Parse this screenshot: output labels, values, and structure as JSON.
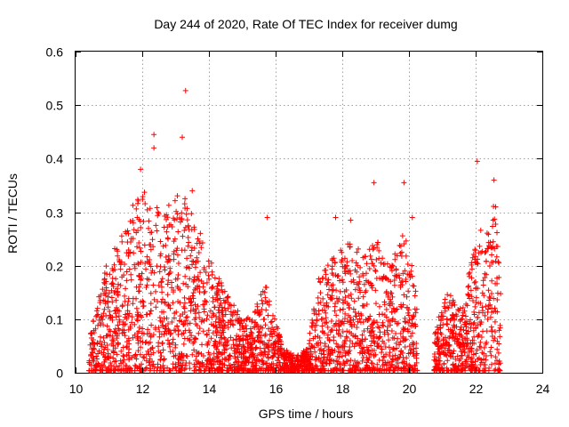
{
  "chart_data": {
    "type": "scatter",
    "title": "Day 244 of 2020, Rate Of TEC Index for receiver dumg",
    "xlabel": "GPS time / hours",
    "ylabel": "ROTI / TECUs",
    "xlim": [
      10,
      24
    ],
    "ylim": [
      0,
      0.6
    ],
    "xticks": [
      "10",
      "12",
      "14",
      "16",
      "18",
      "20",
      "22",
      "24"
    ],
    "yticks": [
      "0",
      "0.1",
      "0.2",
      "0.3",
      "0.4",
      "0.5",
      "0.6"
    ],
    "grid": true,
    "marker": "+",
    "color": "#ff0000",
    "series": [
      {
        "name": "ROTI",
        "approx_peak_points": [
          [
            13.3,
            0.527
          ],
          [
            12.35,
            0.445
          ],
          [
            13.2,
            0.44
          ],
          [
            12.35,
            0.42
          ],
          [
            11.95,
            0.38
          ],
          [
            13.5,
            0.34
          ],
          [
            15.75,
            0.29
          ],
          [
            17.8,
            0.29
          ],
          [
            18.25,
            0.285
          ],
          [
            18.95,
            0.355
          ],
          [
            19.85,
            0.355
          ],
          [
            20.1,
            0.29
          ],
          [
            22.05,
            0.395
          ],
          [
            22.55,
            0.36
          ],
          [
            22.6,
            0.31
          ]
        ]
      }
    ]
  }
}
